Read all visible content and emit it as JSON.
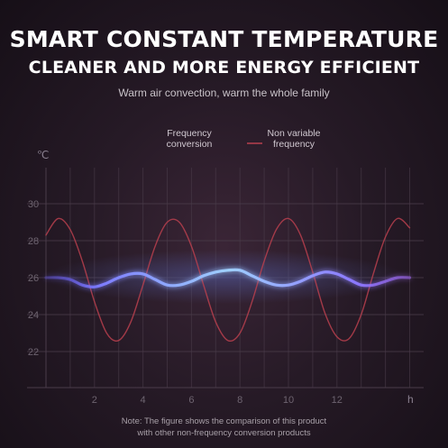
{
  "header": {
    "title_line1": "SMART CONSTANT TEMPERATURE",
    "title_line2": "CLEANER AND MORE ENERGY EFFICIENT",
    "subtitle": "Warm air convection, warm the whole family"
  },
  "note": {
    "line1": "Note: The figure shows the comparison of this product",
    "line2": "with other non-frequency conversion products"
  },
  "colors": {
    "frequency": "#8fb4ff",
    "nonvariable": "#b8404e",
    "grid": "#4a3c4a"
  },
  "chart_data": {
    "type": "line",
    "xlabel": "h",
    "ylabel": "℃",
    "x_ticks": [
      "2",
      "4",
      "6",
      "8",
      "10",
      "12"
    ],
    "y_ticks": [
      "22",
      "24",
      "26",
      "28",
      "30"
    ],
    "xlim": [
      0,
      15
    ],
    "ylim": [
      21,
      31.5
    ],
    "legend_position": "top",
    "series": [
      {
        "name": "Frequency conversion",
        "legend_lines": [
          "Frequency",
          "conversion"
        ],
        "color": "#8fb4ff",
        "x": [
          0,
          0.5,
          1,
          1.5,
          2,
          2.5,
          3,
          3.5,
          4,
          4.5,
          5,
          5.5,
          6,
          6.5,
          7,
          7.5,
          8,
          8.5,
          9,
          9.5,
          10,
          10.5,
          11,
          11.5,
          12,
          12.5,
          13,
          13.5,
          14,
          14.5,
          15
        ],
        "y": [
          26.0,
          26.0,
          25.9,
          25.6,
          25.5,
          25.7,
          26.0,
          26.2,
          26.2,
          25.9,
          25.6,
          25.6,
          25.8,
          26.1,
          26.3,
          26.4,
          26.4,
          26.1,
          25.8,
          25.6,
          25.6,
          25.8,
          26.1,
          26.3,
          26.2,
          25.9,
          25.6,
          25.6,
          25.8,
          26.0,
          26.0
        ]
      },
      {
        "name": "Non variable frequency",
        "legend_lines": [
          "Non variable",
          "frequency"
        ],
        "color": "#b8404e",
        "x": [
          0,
          0.5,
          1,
          1.5,
          2,
          2.5,
          3,
          3.5,
          4,
          4.5,
          5,
          5.5,
          6,
          6.5,
          7,
          7.5,
          8,
          8.5,
          9,
          9.5,
          10,
          10.5,
          11,
          11.5,
          12,
          12.5,
          13,
          13.5,
          14,
          14.5,
          15
        ],
        "y": [
          28.3,
          29.2,
          28.6,
          26.9,
          24.7,
          23.0,
          22.6,
          23.6,
          25.6,
          27.7,
          29.0,
          29.0,
          27.7,
          25.6,
          23.6,
          22.6,
          23.0,
          24.7,
          26.9,
          28.6,
          29.2,
          28.3,
          26.3,
          24.1,
          22.8,
          22.7,
          24.0,
          26.2,
          28.2,
          29.2,
          28.7
        ]
      }
    ],
    "grid": true
  }
}
